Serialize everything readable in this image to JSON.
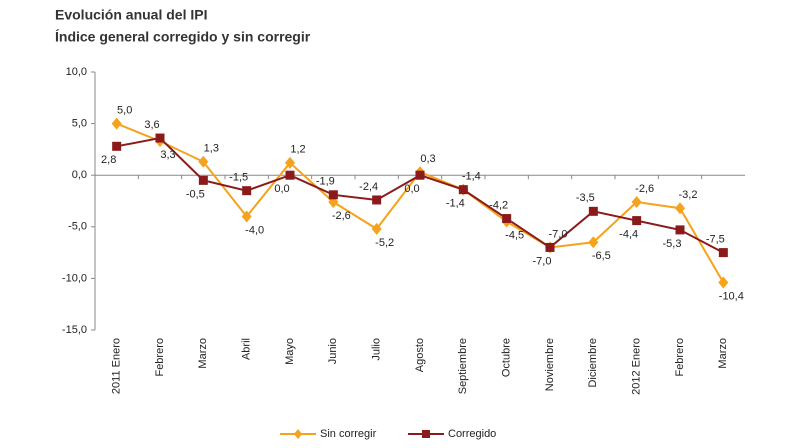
{
  "chart_data": {
    "type": "line",
    "title": "Evolución anual del IPI",
    "subtitle": "Índice general corregido y sin corregir",
    "categories": [
      "2011 Enero",
      "Febrero",
      "Marzo",
      "Abril",
      "Mayo",
      "Junio",
      "Julio",
      "Agosto",
      "Septiembre",
      "Octubre",
      "Noviembre",
      "Diciembre",
      "2012 Enero",
      "Febrero",
      "Marzo"
    ],
    "series": [
      {
        "name": "Sin corregir",
        "color": "#f5a21c",
        "marker": "diamond",
        "values": [
          5.0,
          3.3,
          1.3,
          -4.0,
          1.2,
          -2.6,
          -5.2,
          0.3,
          -1.4,
          -4.5,
          -7.0,
          -6.5,
          -2.6,
          -3.2,
          -10.4
        ],
        "value_labels": [
          "5,0",
          "3,3",
          "1,3",
          "-4,0",
          "1,2",
          "-2,6",
          "-5,2",
          "0,3",
          "-1,4",
          "-4,5",
          "-7,0",
          "-6,5",
          "-2,6",
          "-3,2",
          "-10,4"
        ]
      },
      {
        "name": "Corregido",
        "color": "#8b1a1a",
        "marker": "square",
        "values": [
          2.8,
          3.6,
          -0.5,
          -1.5,
          0.0,
          -1.9,
          -2.4,
          0.0,
          -1.4,
          -4.2,
          -7.0,
          -3.5,
          -4.4,
          -5.3,
          -7.5
        ],
        "value_labels": [
          "2,8",
          "3,6",
          "-0,5",
          "-1,5",
          "0,0",
          "-1,9",
          "-2,4",
          "0,0",
          "-1,4",
          "-4,2",
          "-7,0",
          "-3,5",
          "-4,4",
          "-5,3",
          "-7,5"
        ]
      }
    ],
    "ylim": [
      -15,
      10
    ],
    "yticks": [
      {
        "value": -15,
        "label": "-15,0"
      },
      {
        "value": -10,
        "label": "-10,0"
      },
      {
        "value": -5,
        "label": "-5,0"
      },
      {
        "value": 0,
        "label": "0,0"
      },
      {
        "value": 5,
        "label": "5,0"
      },
      {
        "value": 10,
        "label": "10,0"
      }
    ],
    "grid": false,
    "legend": "bottom"
  }
}
